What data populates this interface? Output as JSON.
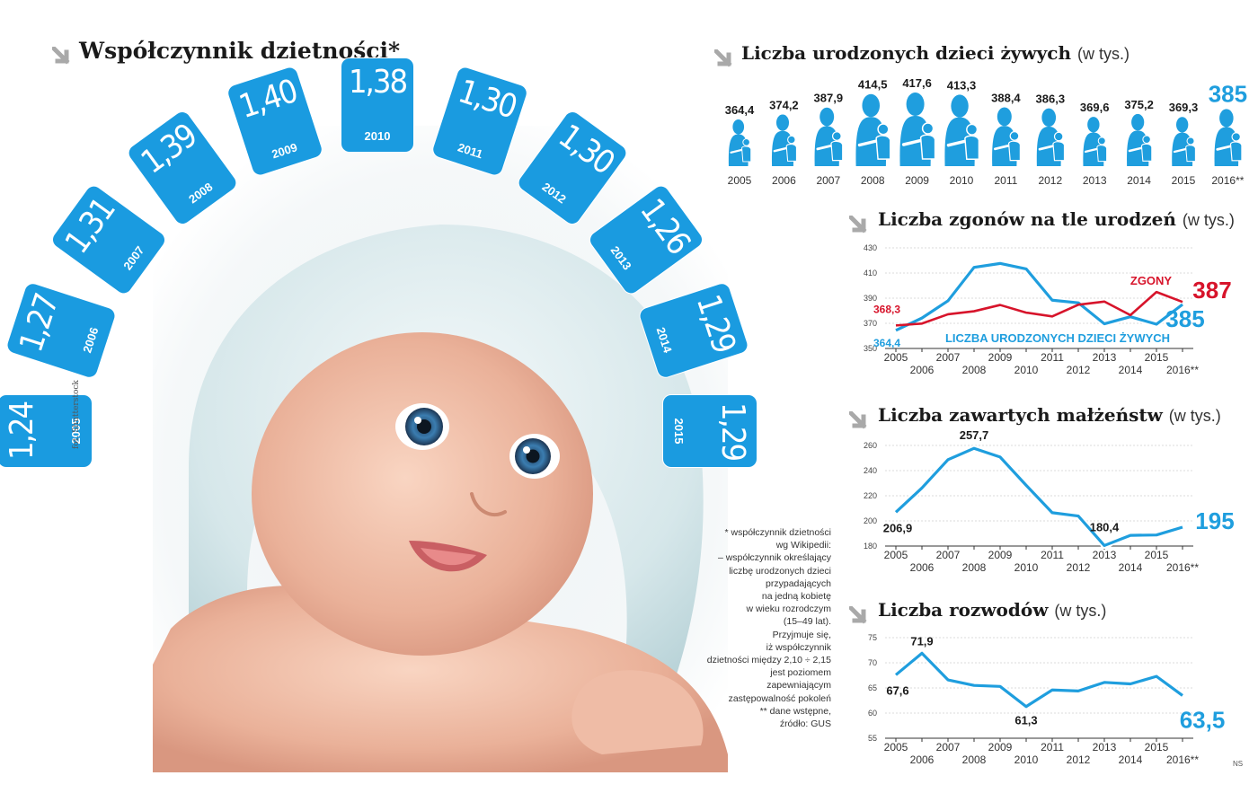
{
  "fertility": {
    "title": "Współczynnik dzietności*",
    "credit": "fot. Shutterstock",
    "footnote": "* współczynnik dzietności\nwg Wikipedii:\n– współczynnik określający\nliczbę urodzonych dzieci\nprzypadających\nna jedną kobietę\nw wieku rozrodczym\n(15–49 lat).\nPrzyjmuje się,\niż współczynnik\ndzietności między 2,10 ÷ 2,15\njest poziomem\nzapewniającym\nzastępowalność pokoleń\n** dane wstępne,\nźródło: GUS",
    "ns": "NS"
  },
  "births_header": {
    "title": "Liczba urodzonych dzieci żywych",
    "unit": "(w tys.)"
  },
  "deaths_header": {
    "title": "Liczba zgonów na tle urodzeń",
    "unit": "(w tys.)"
  },
  "marriages_header": {
    "title": "Liczba zawartych małżeństw",
    "unit": "(w tys.)"
  },
  "divorces_header": {
    "title": "Liczba rozwodów",
    "unit": "(w tys.)"
  },
  "colors": {
    "blue": "#1f9ede",
    "red": "#d7142b",
    "tile": "#1a9be0"
  },
  "chart_data": [
    {
      "id": "fertility",
      "type": "bar",
      "title": "Współczynnik dzietności*",
      "categories": [
        "2005",
        "2006",
        "2007",
        "2008",
        "2009",
        "2010",
        "2011",
        "2012",
        "2013",
        "2014",
        "2015"
      ],
      "values": [
        1.24,
        1.27,
        1.31,
        1.39,
        1.4,
        1.38,
        1.3,
        1.3,
        1.26,
        1.29,
        1.29
      ],
      "value_labels": [
        "1,24",
        "1,27",
        "1,31",
        "1,39",
        "1,40",
        "1,38",
        "1,30",
        "1,30",
        "1,26",
        "1,29",
        "1,29"
      ]
    },
    {
      "id": "births",
      "type": "bar",
      "title": "Liczba urodzonych dzieci żywych",
      "unit": "(w tys.)",
      "categories": [
        "2005",
        "2006",
        "2007",
        "2008",
        "2009",
        "2010",
        "2011",
        "2012",
        "2013",
        "2014",
        "2015",
        "2016**"
      ],
      "values": [
        364.4,
        374.2,
        387.9,
        414.5,
        417.6,
        413.3,
        388.4,
        386.3,
        369.6,
        375.2,
        369.3,
        385
      ],
      "value_labels": [
        "364,4",
        "374,2",
        "387,9",
        "414,5",
        "417,6",
        "413,3",
        "388,4",
        "386,3",
        "369,6",
        "375,2",
        "369,3",
        "385"
      ]
    },
    {
      "id": "deaths",
      "type": "line",
      "title": "Liczba zgonów na tle urodzeń",
      "unit": "(w tys.)",
      "x": [
        "2005",
        "2006",
        "2007",
        "2008",
        "2009",
        "2010",
        "2011",
        "2012",
        "2013",
        "2014",
        "2015",
        "2016**"
      ],
      "ylim": [
        350,
        430
      ],
      "yticks": [
        350,
        370,
        390,
        410,
        430
      ],
      "series": [
        {
          "name": "LICZBA URODZONYCH DZIECI ŻYWYCH",
          "color": "#1f9ede",
          "values": [
            364.4,
            374.2,
            387.9,
            414.5,
            417.6,
            413.3,
            388.4,
            386.3,
            369.6,
            375.2,
            369.3,
            385
          ],
          "start_label": "364,4",
          "end_label": "385"
        },
        {
          "name": "ZGONY",
          "color": "#d7142b",
          "values": [
            368.3,
            369.8,
            377.2,
            379.6,
            384.6,
            378.5,
            375.5,
            384.8,
            387.3,
            376.5,
            394.9,
            387
          ],
          "start_label": "368,3",
          "end_label": "387"
        }
      ]
    },
    {
      "id": "marriages",
      "type": "line",
      "title": "Liczba zawartych małżeństw",
      "unit": "(w tys.)",
      "x": [
        "2005",
        "2006",
        "2007",
        "2008",
        "2009",
        "2010",
        "2011",
        "2012",
        "2013",
        "2014",
        "2015",
        "2016**"
      ],
      "ylim": [
        180,
        260
      ],
      "yticks": [
        180,
        200,
        220,
        240,
        260
      ],
      "series": [
        {
          "name": "",
          "color": "#1f9ede",
          "values": [
            206.9,
            226.2,
            248.7,
            257.7,
            250.8,
            228.3,
            206.5,
            203.9,
            180.4,
            188.5,
            188.8,
            195
          ],
          "point_labels": {
            "0": "206,9",
            "3": "257,7",
            "8": "180,4"
          },
          "end_label": "195"
        }
      ]
    },
    {
      "id": "divorces",
      "type": "line",
      "title": "Liczba rozwodów",
      "unit": "(w tys.)",
      "x": [
        "2005",
        "2006",
        "2007",
        "2008",
        "2009",
        "2010",
        "2011",
        "2012",
        "2013",
        "2014",
        "2015",
        "2016**"
      ],
      "ylim": [
        55,
        75
      ],
      "yticks": [
        55,
        60,
        65,
        70,
        75
      ],
      "series": [
        {
          "name": "",
          "color": "#1f9ede",
          "values": [
            67.6,
            71.9,
            66.6,
            65.5,
            65.3,
            61.3,
            64.6,
            64.4,
            66.1,
            65.8,
            67.3,
            63.5
          ],
          "point_labels": {
            "0": "67,6",
            "1": "71,9",
            "5": "61,3"
          },
          "end_label": "63,5"
        }
      ]
    }
  ]
}
